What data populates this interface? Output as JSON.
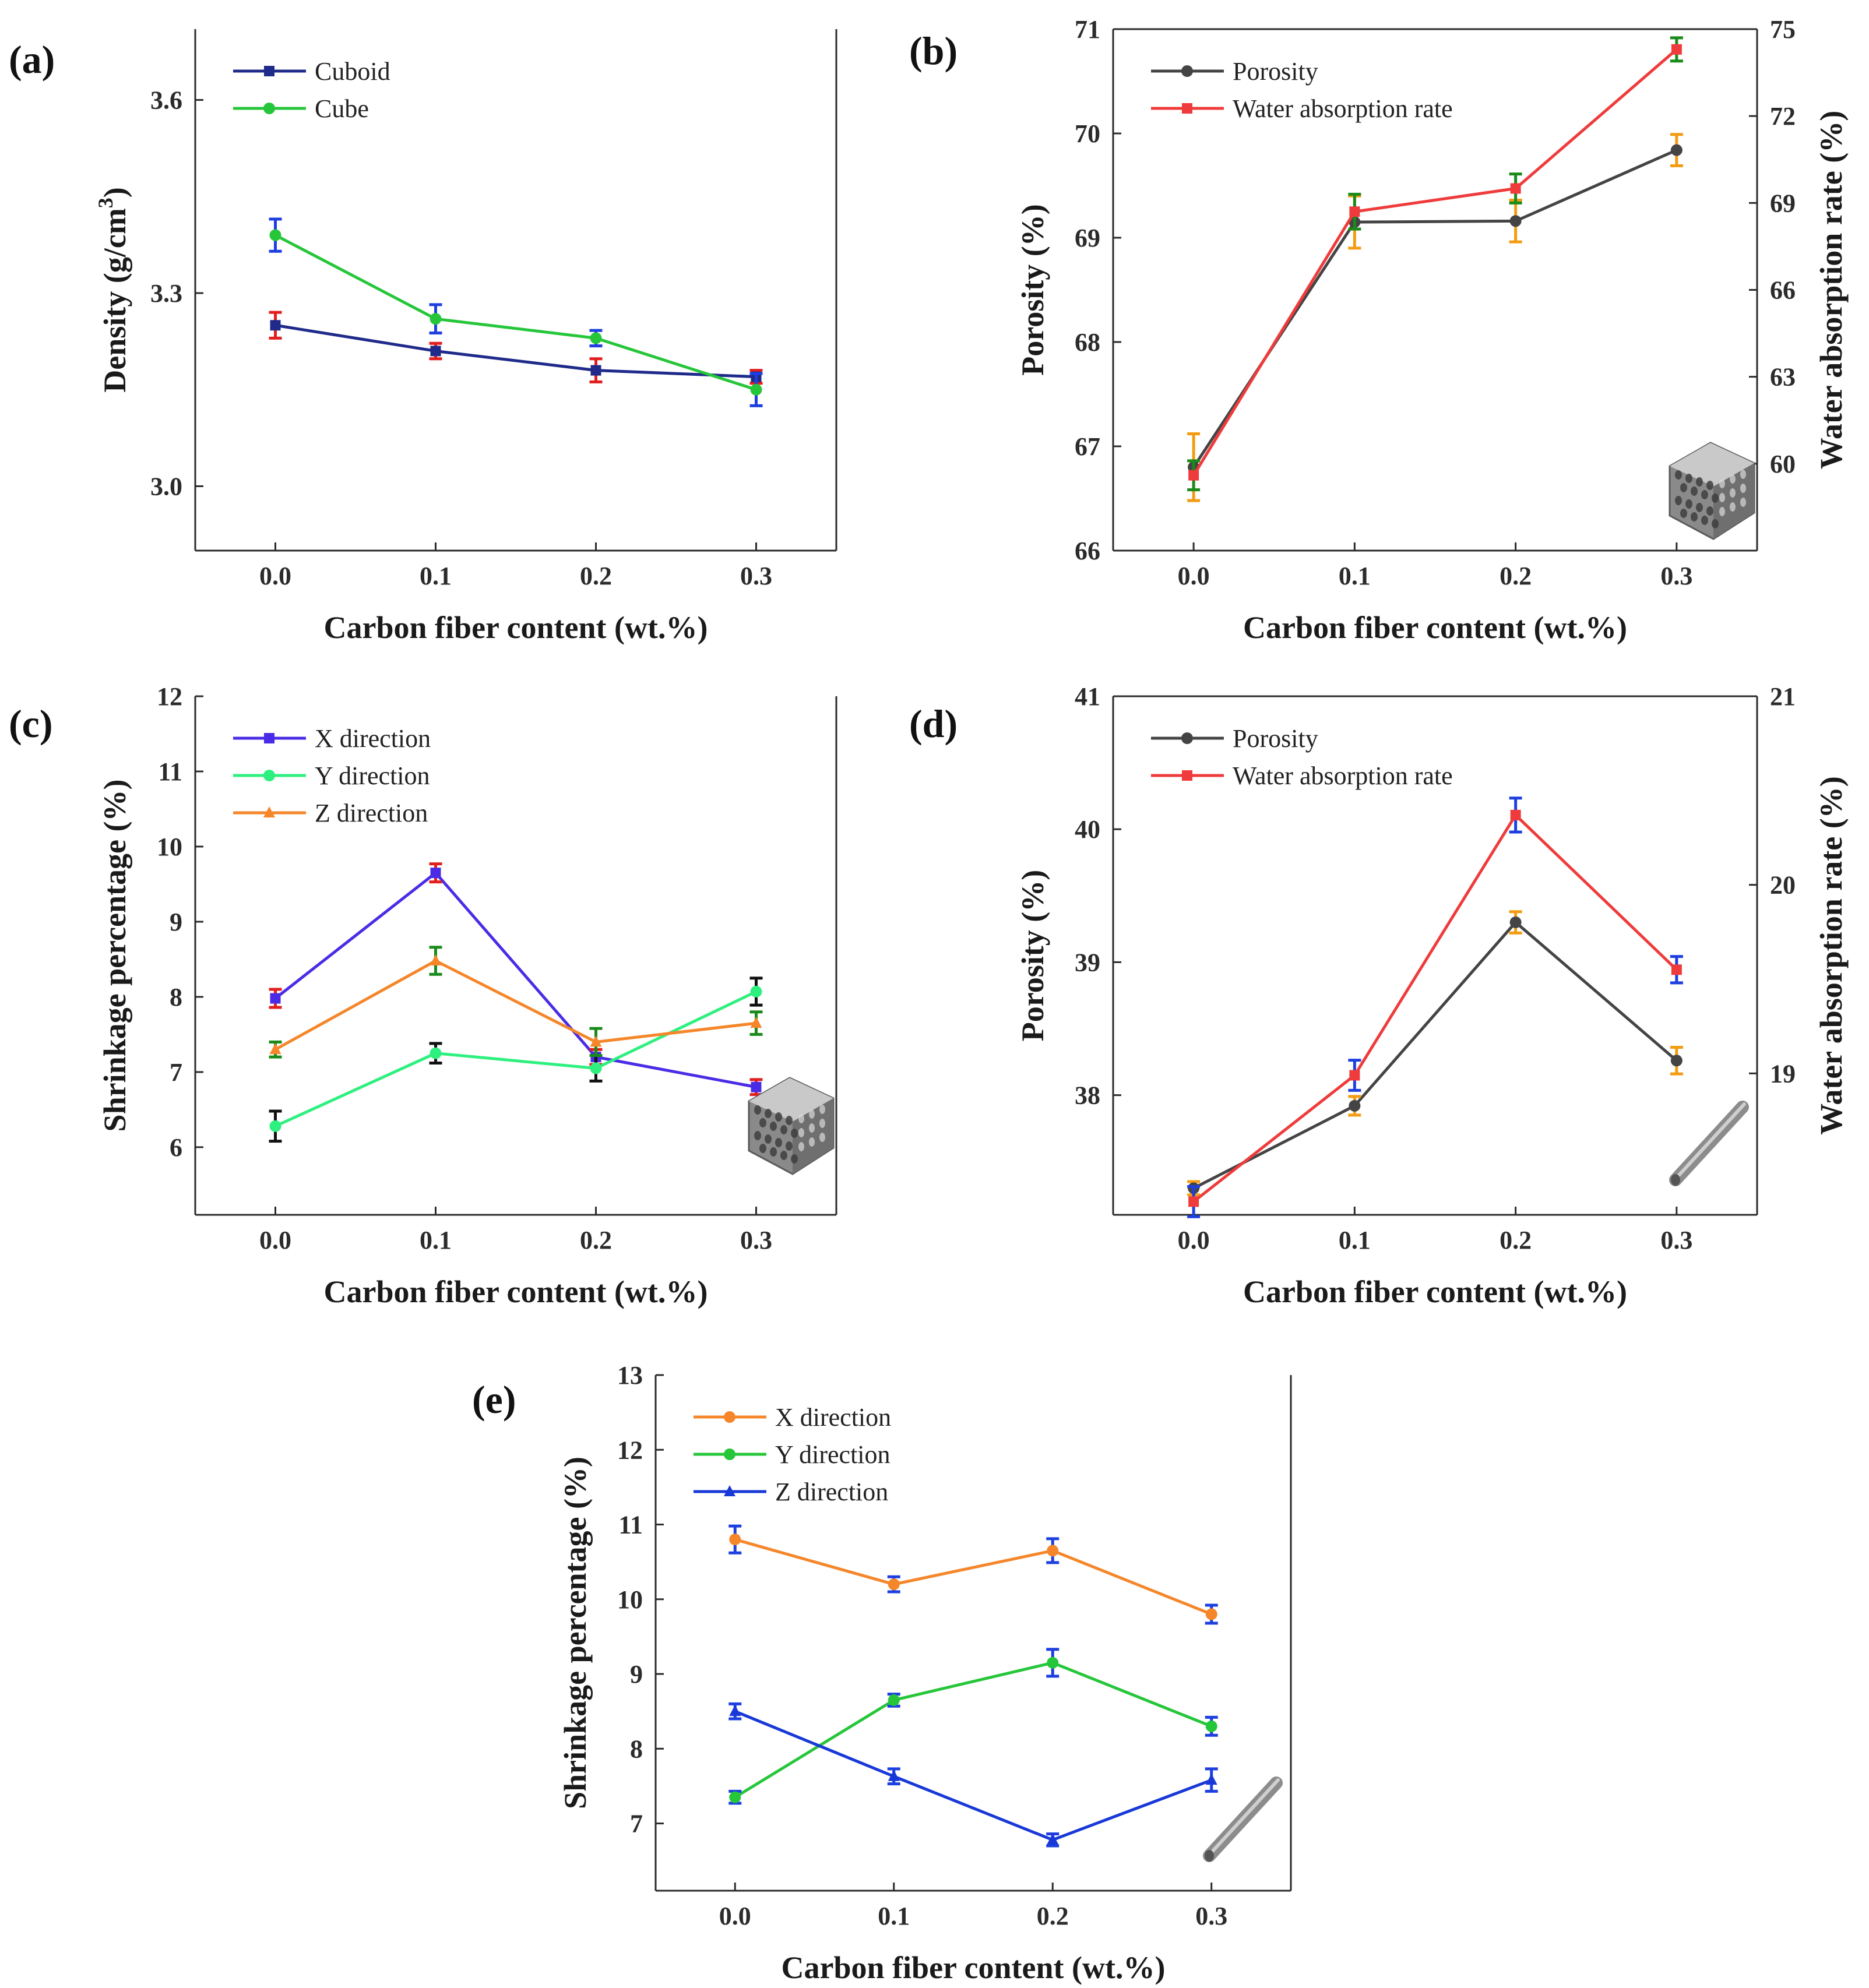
{
  "colors": {
    "navy": "#1f2a8a",
    "green": "#26c63a",
    "gray": "#444444",
    "red": "#ef3b3b",
    "purple": "#4a2ce6",
    "mint": "#2ef07e",
    "orange": "#f5862a",
    "blue": "#1838d8",
    "err_red": "#e21f1f",
    "err_blue": "#1e3fe0",
    "err_green": "#1a8a1a",
    "err_orange": "#f39c12",
    "err_black": "#111111"
  },
  "chart_data": [
    {
      "panel": "(a)",
      "type": "line",
      "xlabel": "Carbon fiber content (wt.%)",
      "ylabel": "Density (g/cm",
      "ylabel_sup": "3",
      "ylabel_close": ")",
      "categories": [
        "0.0",
        "0.1",
        "0.2",
        "0.3"
      ],
      "x": [
        0,
        0.1,
        0.2,
        0.3
      ],
      "xlim": [
        -0.05,
        0.35
      ],
      "ylim": [
        2.9,
        3.71
      ],
      "yticks": [
        "3.0",
        "3.3",
        "3.6"
      ],
      "ytick_values": [
        3.0,
        3.3,
        3.6
      ],
      "legend_position": "top-left",
      "series": [
        {
          "name": "Cuboid",
          "marker": "square",
          "color_key": "navy",
          "axis": "left",
          "values": [
            3.25,
            3.21,
            3.18,
            3.17
          ],
          "errors": [
            0.02,
            0.012,
            0.018,
            0.01
          ],
          "error_color_keys": [
            "err_red",
            "err_red",
            "err_red",
            "err_red"
          ]
        },
        {
          "name": "Cube",
          "marker": "circle",
          "color_key": "green",
          "axis": "left",
          "values": [
            3.39,
            3.26,
            3.23,
            3.15
          ],
          "errors": [
            0.025,
            0.022,
            0.012,
            0.025
          ],
          "error_color_keys": [
            "err_blue",
            "err_blue",
            "err_blue",
            "err_blue"
          ]
        }
      ]
    },
    {
      "panel": "(b)",
      "type": "line",
      "xlabel": "Carbon fiber content (wt.%)",
      "ylabel": "Porosity (%)",
      "ylabel_right": "Water absorption rate (%)",
      "categories": [
        "0.0",
        "0.1",
        "0.2",
        "0.3"
      ],
      "x": [
        0,
        0.1,
        0.2,
        0.3
      ],
      "xlim": [
        -0.05,
        0.35
      ],
      "ylim": [
        66,
        71
      ],
      "yticks": [
        "66",
        "67",
        "68",
        "69",
        "70",
        "71"
      ],
      "ytick_values": [
        66,
        67,
        68,
        69,
        70,
        71
      ],
      "ylim_right": [
        57,
        75
      ],
      "yticks_right": [
        "60",
        "63",
        "66",
        "69",
        "72",
        "75"
      ],
      "ytick_values_right": [
        60,
        63,
        66,
        69,
        72,
        75
      ],
      "legend_position": "top-left",
      "inset_image": "honeycomb-scaffold",
      "series": [
        {
          "name": "Porosity",
          "marker": "circle",
          "color_key": "gray",
          "axis": "left",
          "values": [
            66.8,
            69.15,
            69.16,
            69.84
          ],
          "errors": [
            0.32,
            0.25,
            0.2,
            0.15
          ],
          "error_color_keys": [
            "err_orange",
            "err_orange",
            "err_orange",
            "err_orange"
          ]
        },
        {
          "name": "Water absorption rate",
          "marker": "square",
          "color_key": "red",
          "axis": "right",
          "values": [
            59.6,
            68.7,
            69.5,
            74.3
          ],
          "errors": [
            0.5,
            0.6,
            0.5,
            0.4
          ],
          "error_color_keys": [
            "err_green",
            "err_green",
            "err_green",
            "err_green"
          ]
        }
      ]
    },
    {
      "panel": "(c)",
      "type": "line",
      "xlabel": "Carbon fiber content (wt.%)",
      "ylabel": "Shrinkage percentage (%)",
      "categories": [
        "0.0",
        "0.1",
        "0.2",
        "0.3"
      ],
      "x": [
        0,
        0.1,
        0.2,
        0.3
      ],
      "xlim": [
        -0.05,
        0.35
      ],
      "ylim": [
        5.1,
        12
      ],
      "yticks": [
        "6",
        "7",
        "8",
        "9",
        "10",
        "11",
        "12"
      ],
      "ytick_values": [
        6,
        7,
        8,
        9,
        10,
        11,
        12
      ],
      "legend_position": "top-left",
      "inset_image": "honeycomb-scaffold",
      "series": [
        {
          "name": "X direction",
          "marker": "square",
          "color_key": "purple",
          "axis": "left",
          "values": [
            7.98,
            9.65,
            7.2,
            6.8
          ],
          "errors": [
            0.12,
            0.12,
            0.1,
            0.1
          ],
          "error_color_keys": [
            "err_red",
            "err_red",
            "err_red",
            "err_red"
          ]
        },
        {
          "name": "Y direction",
          "marker": "circle",
          "color_key": "mint",
          "axis": "left",
          "values": [
            6.28,
            7.25,
            7.05,
            8.07
          ],
          "errors": [
            0.2,
            0.13,
            0.17,
            0.18
          ],
          "error_color_keys": [
            "err_black",
            "err_black",
            "err_black",
            "err_black"
          ]
        },
        {
          "name": "Z direction",
          "marker": "triangle",
          "color_key": "orange",
          "axis": "left",
          "values": [
            7.3,
            8.48,
            7.4,
            7.65
          ],
          "errors": [
            0.1,
            0.18,
            0.18,
            0.15
          ],
          "error_color_keys": [
            "err_green",
            "err_green",
            "err_green",
            "err_green"
          ]
        }
      ]
    },
    {
      "panel": "(d)",
      "type": "line",
      "xlabel": "Carbon fiber content (wt.%)",
      "ylabel": "Porosity (%)",
      "ylabel_right": "Water absorption rate (%)",
      "categories": [
        "0.0",
        "0.1",
        "0.2",
        "0.3"
      ],
      "x": [
        0,
        0.1,
        0.2,
        0.3
      ],
      "xlim": [
        -0.05,
        0.35
      ],
      "ylim": [
        37.1,
        41
      ],
      "yticks": [
        "38",
        "39",
        "40",
        "41"
      ],
      "ytick_values": [
        38,
        39,
        40,
        41
      ],
      "ylim_right": [
        18.25,
        21
      ],
      "yticks_right": [
        "19",
        "20",
        "21"
      ],
      "ytick_values_right": [
        19,
        20,
        21
      ],
      "legend_position": "top-left",
      "inset_image": "rod-sample",
      "series": [
        {
          "name": "Porosity",
          "marker": "circle",
          "color_key": "gray",
          "axis": "left",
          "values": [
            37.3,
            37.92,
            39.3,
            38.26
          ],
          "errors": [
            0.05,
            0.07,
            0.08,
            0.1
          ],
          "error_color_keys": [
            "err_orange",
            "err_orange",
            "err_orange",
            "err_orange"
          ]
        },
        {
          "name": "Water absorption rate",
          "marker": "square",
          "color_key": "red",
          "axis": "right",
          "values": [
            18.32,
            18.99,
            20.37,
            19.55
          ],
          "errors": [
            0.08,
            0.08,
            0.09,
            0.07
          ],
          "error_color_keys": [
            "err_blue",
            "err_blue",
            "err_blue",
            "err_blue"
          ]
        }
      ]
    },
    {
      "panel": "(e)",
      "type": "line",
      "xlabel": "Carbon fiber content (wt.%)",
      "ylabel": "Shrinkage percentage (%)",
      "categories": [
        "0.0",
        "0.1",
        "0.2",
        "0.3"
      ],
      "x": [
        0,
        0.1,
        0.2,
        0.3
      ],
      "xlim": [
        -0.05,
        0.35
      ],
      "ylim": [
        6.1,
        13
      ],
      "yticks": [
        "7",
        "8",
        "9",
        "10",
        "11",
        "12",
        "13"
      ],
      "ytick_values": [
        7,
        8,
        9,
        10,
        11,
        12,
        13
      ],
      "legend_position": "top-left",
      "inset_image": "rod-sample",
      "series": [
        {
          "name": "X direction",
          "marker": "circle",
          "color_key": "orange",
          "axis": "left",
          "values": [
            10.8,
            10.2,
            10.65,
            9.8
          ],
          "errors": [
            0.18,
            0.1,
            0.16,
            0.12
          ],
          "error_color_keys": [
            "err_blue",
            "err_blue",
            "err_blue",
            "err_blue"
          ]
        },
        {
          "name": "Y direction",
          "marker": "circle",
          "color_key": "green",
          "axis": "left",
          "values": [
            7.35,
            8.65,
            9.15,
            8.3
          ],
          "errors": [
            0.08,
            0.08,
            0.18,
            0.12
          ],
          "error_color_keys": [
            "err_blue",
            "err_blue",
            "err_blue",
            "err_blue"
          ]
        },
        {
          "name": "Z direction",
          "marker": "triangle",
          "color_key": "blue",
          "axis": "left",
          "values": [
            8.5,
            7.63,
            6.78,
            7.58
          ],
          "errors": [
            0.1,
            0.1,
            0.08,
            0.15
          ],
          "error_color_keys": [
            "err_blue",
            "err_blue",
            "err_blue",
            "err_blue"
          ]
        }
      ]
    }
  ]
}
